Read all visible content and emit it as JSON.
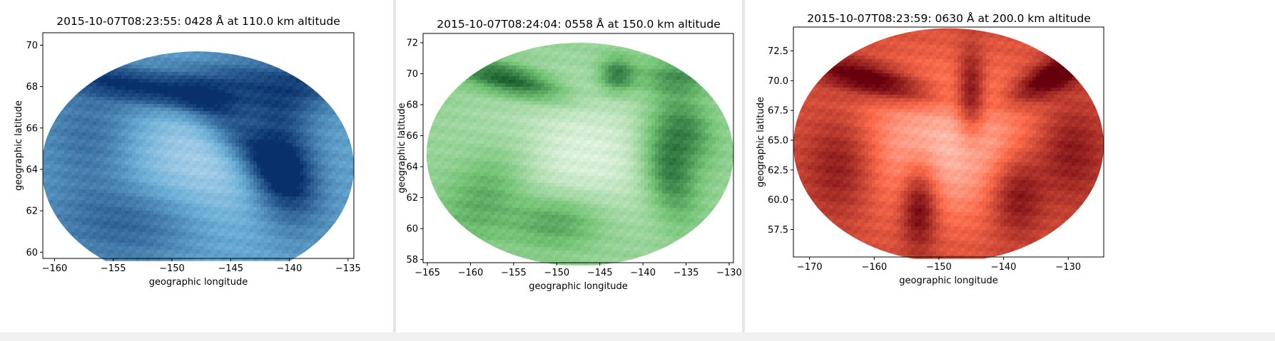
{
  "chart_data": [
    {
      "type": "heatmap",
      "title": "2015-10-07T08:23:55: 0428 Å at 110.0 km altitude",
      "xlabel": "geographic longitude",
      "ylabel": "geographic latitude",
      "xlim": [
        -161,
        -134.5
      ],
      "ylim": [
        59.7,
        70.6
      ],
      "xticks": [
        -160,
        -155,
        -150,
        -145,
        -140,
        -135
      ],
      "yticks": [
        60,
        62,
        64,
        66,
        68,
        70
      ],
      "ytick_decimals": 0,
      "colormap": "Blues",
      "colors": {
        "light": "#f7fbff",
        "mid": "#6baed6",
        "dark": "#08306b"
      },
      "region": {
        "center_lon": -147.8,
        "center_lat": 64.1,
        "radius_lon": 13.3,
        "radius_lat": 5.6
      },
      "features": [
        {
          "lon": -152,
          "lat": 67.9,
          "sx": 5.5,
          "sy": 0.6,
          "v": 0.75,
          "angle": -6
        },
        {
          "lon": -140.5,
          "lat": 64.2,
          "sx": 2.2,
          "sy": 1.8,
          "v": 0.95,
          "angle": -30
        },
        {
          "lon": -144,
          "lat": 65.4,
          "sx": 3.5,
          "sy": 0.9,
          "v": 0.6,
          "angle": -25
        },
        {
          "lon": -144.5,
          "lat": 68.2,
          "sx": 3.5,
          "sy": 0.8,
          "v": 0.55,
          "angle": 0
        },
        {
          "lon": -153,
          "lat": 61.5,
          "sx": 4.5,
          "sy": 1.4,
          "v": 0.5,
          "angle": 0
        },
        {
          "lon": -138,
          "lat": 68.2,
          "sx": 3,
          "sy": 1,
          "v": 0.45,
          "angle": 10
        },
        {
          "lon": -156.5,
          "lat": 65.5,
          "sx": 3,
          "sy": 2,
          "v": 0.4,
          "angle": 0
        }
      ],
      "base_level": 0.58,
      "center_dip": 0.3
    },
    {
      "type": "heatmap",
      "title": "2015-10-07T08:24:04: 0558 Å at 150.0 km altitude",
      "xlabel": "geographic longitude",
      "ylabel": "geographic latitude",
      "xlim": [
        -165.5,
        -129.5
      ],
      "ylim": [
        57.8,
        72.6
      ],
      "xticks": [
        -165,
        -160,
        -155,
        -150,
        -145,
        -140,
        -135,
        -130
      ],
      "yticks": [
        58,
        60,
        62,
        64,
        66,
        68,
        70,
        72
      ],
      "ytick_decimals": 0,
      "colormap": "Greens",
      "colors": {
        "light": "#f7fcf5",
        "mid": "#74c476",
        "dark": "#00441b"
      },
      "region": {
        "center_lon": -147.3,
        "center_lat": 64.8,
        "radius_lon": 17.8,
        "radius_lat": 7.2
      },
      "features": [
        {
          "lon": -155.5,
          "lat": 69.6,
          "sx": 4.5,
          "sy": 0.7,
          "v": 0.9,
          "angle": -8
        },
        {
          "lon": -143,
          "lat": 69.9,
          "sx": 1.5,
          "sy": 0.8,
          "v": 0.75,
          "angle": 0
        },
        {
          "lon": -137,
          "lat": 63.8,
          "sx": 2.5,
          "sy": 1.8,
          "v": 0.8,
          "angle": -40
        },
        {
          "lon": -135,
          "lat": 66.5,
          "sx": 2.5,
          "sy": 1.5,
          "v": 0.6,
          "angle": -20
        },
        {
          "lon": -150,
          "lat": 60.5,
          "sx": 4,
          "sy": 1.3,
          "v": 0.55,
          "angle": 0
        },
        {
          "lon": -158,
          "lat": 62.5,
          "sx": 4,
          "sy": 2,
          "v": 0.45,
          "angle": 20
        },
        {
          "lon": -136,
          "lat": 69.8,
          "sx": 3,
          "sy": 0.8,
          "v": 0.5,
          "angle": 0
        }
      ],
      "base_level": 0.4,
      "center_dip": 0.3
    },
    {
      "type": "heatmap",
      "title": "2015-10-07T08:23:59: 0630 Å at 200.0 km altitude",
      "xlabel": "geographic longitude",
      "ylabel": "geographic latitude",
      "xlim": [
        -172.5,
        -124.5
      ],
      "ylim": [
        55.2,
        74.5
      ],
      "xticks": [
        -170,
        -160,
        -150,
        -140,
        -130
      ],
      "yticks": [
        57.5,
        60,
        62.5,
        65,
        67.5,
        70,
        72.5
      ],
      "ytick_decimals": 1,
      "colormap": "Reds",
      "colors": {
        "light": "#fff5f0",
        "mid": "#fb6a4a",
        "dark": "#67000d"
      },
      "region": {
        "center_lon": -148.5,
        "center_lat": 64.6,
        "radius_lon": 24,
        "radius_lat": 9.8
      },
      "features": [
        {
          "lon": -160,
          "lat": 70,
          "sx": 7,
          "sy": 1,
          "v": 0.85,
          "angle": -8
        },
        {
          "lon": -132,
          "lat": 70.5,
          "sx": 5,
          "sy": 1,
          "v": 0.9,
          "angle": 15
        },
        {
          "lon": -145,
          "lat": 69,
          "sx": 1.5,
          "sy": 2.5,
          "v": 0.75,
          "angle": 0
        },
        {
          "lon": -153,
          "lat": 59.5,
          "sx": 2,
          "sy": 2.5,
          "v": 0.8,
          "angle": 0
        },
        {
          "lon": -138,
          "lat": 60.5,
          "sx": 3,
          "sy": 2.5,
          "v": 0.65,
          "angle": 0
        },
        {
          "lon": -165,
          "lat": 63,
          "sx": 4,
          "sy": 3,
          "v": 0.55,
          "angle": 0
        },
        {
          "lon": -130,
          "lat": 64,
          "sx": 4,
          "sy": 3,
          "v": 0.55,
          "angle": 0
        }
      ],
      "base_level": 0.66,
      "center_dip": 0.45
    }
  ]
}
